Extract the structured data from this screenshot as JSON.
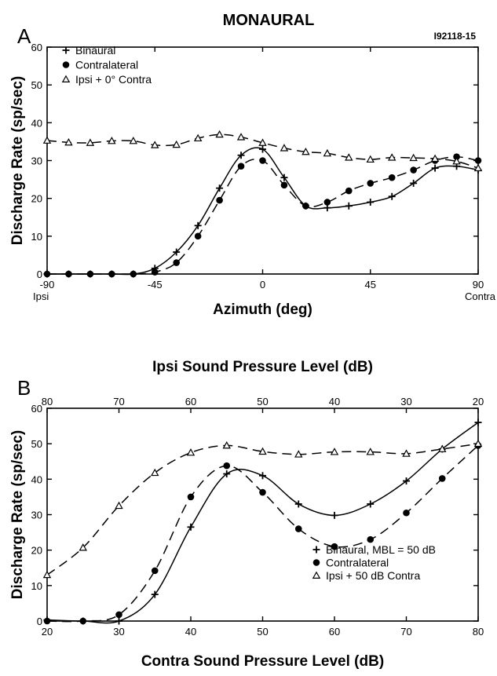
{
  "figure_title": "MONAURAL",
  "chart_data": [
    {
      "panel_label": "A",
      "id_tag": "I92118-15",
      "type": "line",
      "xlabel": "Azimuth (deg)",
      "ylabel": "Discharge Rate (sp/sec)",
      "xlim": [
        -90,
        90
      ],
      "ylim": [
        0,
        60
      ],
      "x_ticks": [
        -90,
        -45,
        0,
        45,
        90
      ],
      "x_tick_labels": [
        "-90",
        "-45",
        "0",
        "45",
        "90"
      ],
      "y_ticks": [
        0,
        10,
        20,
        30,
        40,
        50,
        60
      ],
      "y_tick_labels": [
        "0",
        "10",
        "20",
        "30",
        "40",
        "50",
        "60"
      ],
      "x_end_labels": [
        "Ipsi",
        "Contra"
      ],
      "legend_position": "top-left",
      "series": [
        {
          "name": "Binaural",
          "marker": "plus",
          "line": "solid",
          "x": [
            -90,
            -81,
            -72,
            -63,
            -54,
            -45,
            -36,
            -27,
            -18,
            -9,
            0,
            9,
            18,
            27,
            36,
            45,
            54,
            63,
            72,
            81,
            90
          ],
          "y": [
            0,
            0,
            0,
            0,
            0,
            1.5,
            5.8,
            12.8,
            22.7,
            31.4,
            33,
            25.5,
            18,
            17.5,
            18,
            19,
            20.5,
            24,
            28,
            28.5,
            27.5
          ]
        },
        {
          "name": "Contralateral",
          "marker": "filled-circle",
          "line": "dashed",
          "x": [
            -90,
            -81,
            -72,
            -63,
            -54,
            -45,
            -36,
            -27,
            -18,
            -9,
            0,
            9,
            18,
            27,
            36,
            45,
            54,
            63,
            72,
            81,
            90
          ],
          "y": [
            0,
            0,
            0,
            0,
            0,
            0.5,
            3,
            10,
            19.5,
            28.5,
            30,
            23.5,
            18,
            19,
            22,
            24,
            25.5,
            27.5,
            30,
            31,
            30
          ]
        },
        {
          "name": "Ipsi + 0° Contra",
          "marker": "open-triangle",
          "line": "dashed",
          "x": [
            -90,
            -81,
            -72,
            -63,
            -54,
            -45,
            -36,
            -27,
            -18,
            -9,
            0,
            9,
            18,
            27,
            36,
            45,
            54,
            63,
            72,
            81,
            90
          ],
          "y": [
            35.3,
            34.8,
            34.7,
            35.2,
            35.2,
            34.1,
            34.2,
            35.9,
            36.9,
            36.2,
            34.7,
            33.3,
            32.3,
            31.9,
            30.8,
            30.3,
            30.8,
            30.7,
            30.5,
            29.8,
            28
          ]
        }
      ]
    },
    {
      "panel_label": "B",
      "type": "line",
      "xlabel": "Contra Sound Pressure Level (dB)",
      "x2label": "Ipsi Sound Pressure Level (dB)",
      "ylabel": "Discharge Rate (sp/sec)",
      "xlim": [
        20,
        80
      ],
      "ylim": [
        0,
        60
      ],
      "x_ticks": [
        20,
        30,
        40,
        50,
        60,
        70,
        80
      ],
      "x_tick_labels": [
        "20",
        "30",
        "40",
        "50",
        "60",
        "70",
        "80"
      ],
      "x2_tick_labels": [
        "80",
        "70",
        "60",
        "50",
        "40",
        "30",
        "20"
      ],
      "y_ticks": [
        0,
        10,
        20,
        30,
        40,
        50,
        60
      ],
      "y_tick_labels": [
        "0",
        "10",
        "20",
        "30",
        "40",
        "50",
        "60"
      ],
      "legend_position": "bottom-right",
      "series": [
        {
          "name": "Binaural, MBL = 50 dB",
          "marker": "plus",
          "line": "solid",
          "x": [
            20,
            25,
            30,
            35,
            40,
            45,
            50,
            55,
            60,
            65,
            70,
            75,
            80
          ],
          "y": [
            0.3,
            0,
            0,
            7.5,
            26.5,
            41.5,
            41,
            33,
            29.8,
            33,
            39.5,
            48.5,
            56
          ]
        },
        {
          "name": "Contralateral",
          "marker": "filled-circle",
          "line": "dashed",
          "x": [
            20,
            25,
            30,
            35,
            40,
            45,
            50,
            55,
            60,
            65,
            70,
            75,
            80
          ],
          "y": [
            0,
            0,
            1.8,
            14.2,
            35,
            43.8,
            36.3,
            26,
            21,
            23,
            30.5,
            40.2,
            49.5
          ]
        },
        {
          "name": "Ipsi + 50 dB Contra",
          "marker": "open-triangle",
          "line": "dashed",
          "x": [
            20,
            25,
            30,
            35,
            40,
            45,
            50,
            55,
            60,
            65,
            70,
            75,
            80
          ],
          "y": [
            13,
            20.7,
            32.5,
            41.8,
            47.5,
            49.5,
            47.8,
            47,
            47.7,
            47.7,
            47.2,
            48.5,
            50
          ]
        }
      ]
    }
  ]
}
